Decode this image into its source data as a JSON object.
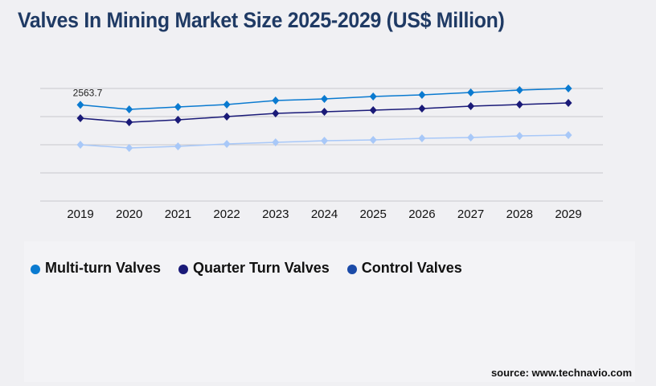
{
  "title": "Valves In Mining Market Size 2025-2029 (US$ Million)",
  "source": "source: www.technavio.com",
  "chart_data": {
    "type": "line",
    "title": "Valves In Mining Market Size 2025-2029 (US$ Million)",
    "categories": [
      "2019",
      "2020",
      "2021",
      "2022",
      "2023",
      "2024",
      "2025",
      "2026",
      "2027",
      "2028",
      "2029"
    ],
    "ylim": [
      0,
      3000
    ],
    "grid": true,
    "legend_placement": "bottom-left",
    "annotation": "2563.7",
    "series": [
      {
        "name": "Multi-turn Valves",
        "color": "#0a7ad0",
        "legend_color": "#0a7ad0",
        "values": [
          2563.7,
          2443,
          2507,
          2571,
          2679,
          2721,
          2786,
          2829,
          2893,
          2957,
          3000
        ]
      },
      {
        "name": "Quarter Turn Valves",
        "color": "#1a1a78",
        "legend_color": "#1a1a78",
        "values": [
          2207,
          2100,
          2164,
          2250,
          2336,
          2379,
          2421,
          2464,
          2529,
          2571,
          2614
        ]
      },
      {
        "name": "Control Valves",
        "color": "#a8c8f8",
        "legend_color": "#1a4aa8",
        "values": [
          1500,
          1414,
          1457,
          1521,
          1564,
          1607,
          1629,
          1671,
          1693,
          1736,
          1757
        ]
      }
    ]
  }
}
